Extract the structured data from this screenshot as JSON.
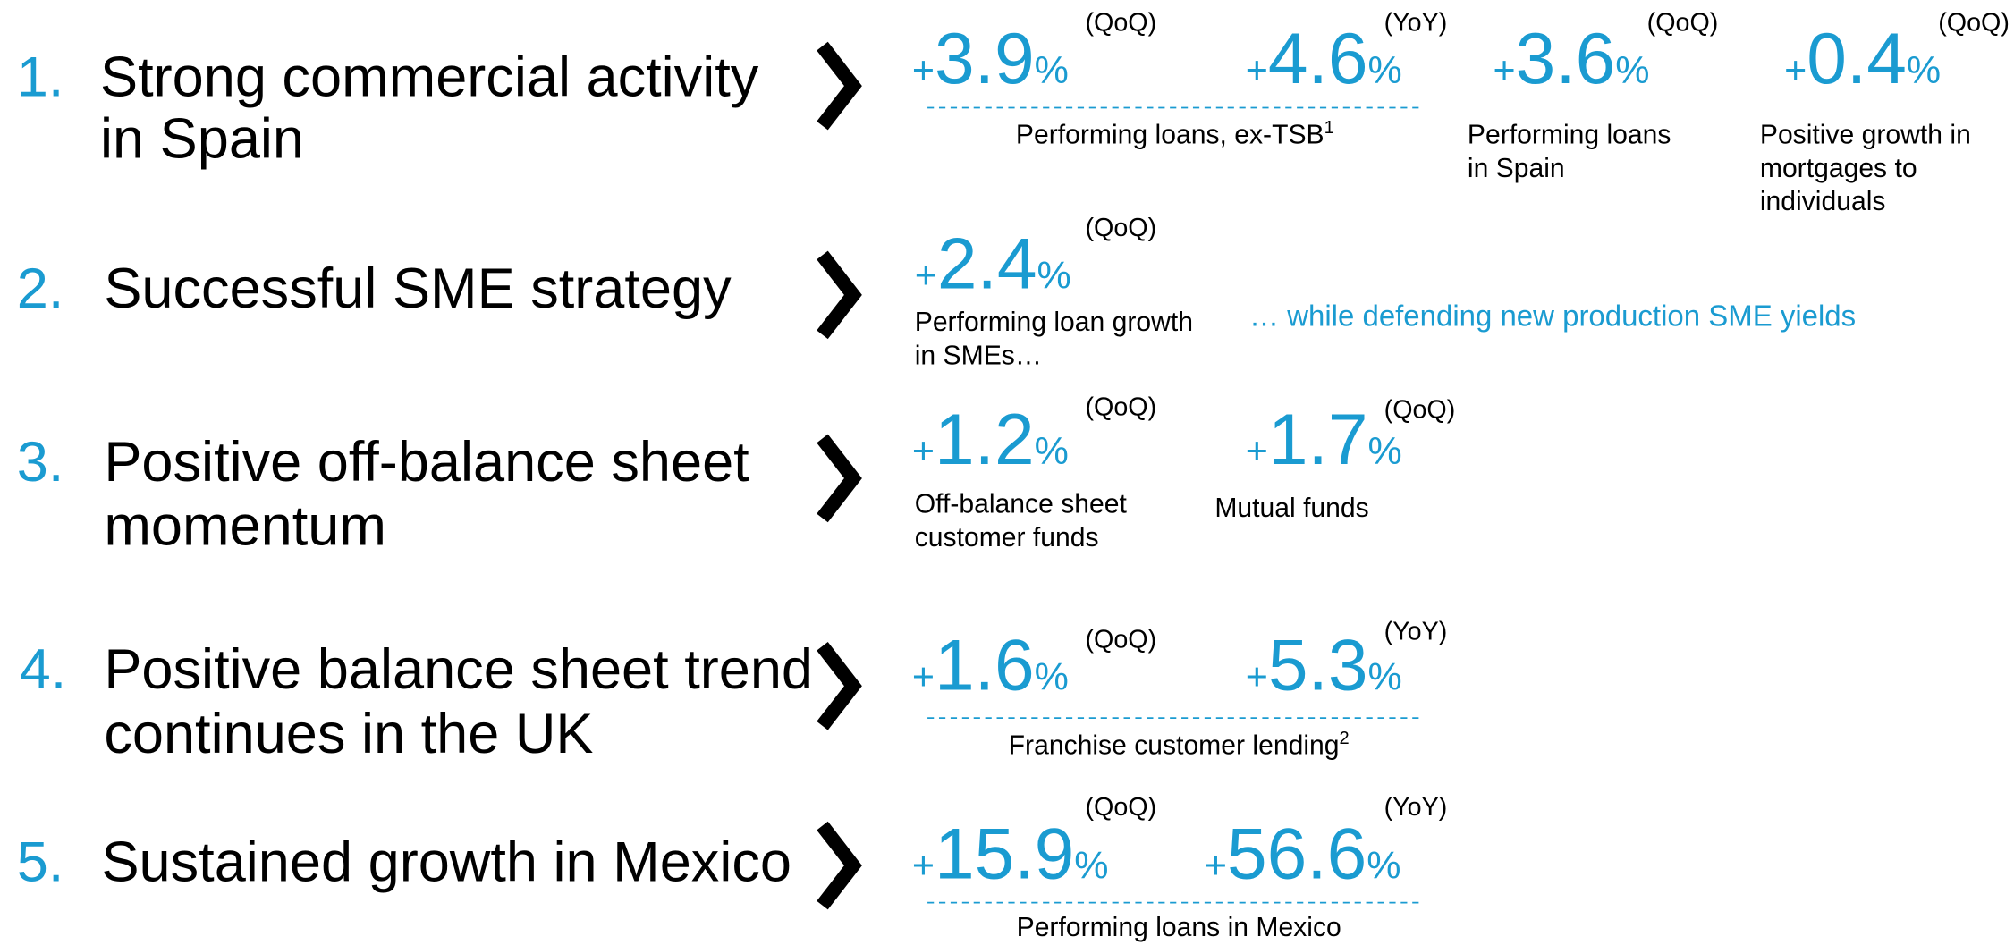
{
  "rows": [
    {
      "number": "1.",
      "heading": [
        "Strong commercial activity",
        "in Spain"
      ],
      "metrics": [
        {
          "sign": "+",
          "value": "3.9",
          "unit": "%",
          "period": "(QoQ)"
        },
        {
          "sign": "+",
          "value": "4.6",
          "unit": "%",
          "period": "(YoY)"
        },
        {
          "sign": "+",
          "value": "3.6",
          "unit": "%",
          "period": "(QoQ)"
        },
        {
          "sign": "+",
          "value": "0.4",
          "unit": "%",
          "period": "(QoQ)"
        }
      ],
      "captions": [
        {
          "lines": [
            "Performing loans, ex-TSB"
          ],
          "footnote": "1"
        },
        {
          "lines": [
            "Performing loans",
            "in Spain"
          ]
        },
        {
          "lines": [
            "Positive growth in",
            "mortgages to",
            "individuals"
          ]
        }
      ]
    },
    {
      "number": "2.",
      "heading": [
        "Successful SME strategy"
      ],
      "metrics": [
        {
          "sign": "+",
          "value": "2.4",
          "unit": "%",
          "period": "(QoQ)"
        }
      ],
      "captions": [
        {
          "lines": [
            "Performing loan growth",
            "in SMEs…"
          ]
        }
      ],
      "note": "… while defending new production SME yields"
    },
    {
      "number": "3.",
      "heading": [
        "Positive off-balance sheet",
        "momentum"
      ],
      "metrics": [
        {
          "sign": "+",
          "value": "1.2",
          "unit": "%",
          "period": "(QoQ)"
        },
        {
          "sign": "+",
          "value": "1.7",
          "unit": "%",
          "period": "(QoQ)"
        }
      ],
      "captions": [
        {
          "lines": [
            "Off-balance sheet",
            "customer funds"
          ]
        },
        {
          "lines": [
            "Mutual funds"
          ]
        }
      ]
    },
    {
      "number": "4.",
      "heading": [
        "Positive balance sheet trend",
        "continues in the UK"
      ],
      "metrics": [
        {
          "sign": "+",
          "value": "1.6",
          "unit": "%",
          "period": "(QoQ)"
        },
        {
          "sign": "+",
          "value": "5.3",
          "unit": "%",
          "period": "(YoY)"
        }
      ],
      "captions": [
        {
          "lines": [
            "Franchise customer lending"
          ],
          "footnote": "2"
        }
      ]
    },
    {
      "number": "5.",
      "heading": [
        "Sustained growth in Mexico"
      ],
      "metrics": [
        {
          "sign": "+",
          "value": "15.9",
          "unit": "%",
          "period": "(QoQ)"
        },
        {
          "sign": "+",
          "value": "56.6",
          "unit": "%",
          "period": "(YoY)"
        }
      ],
      "captions": [
        {
          "lines": [
            "Performing loans in Mexico"
          ]
        }
      ]
    }
  ]
}
